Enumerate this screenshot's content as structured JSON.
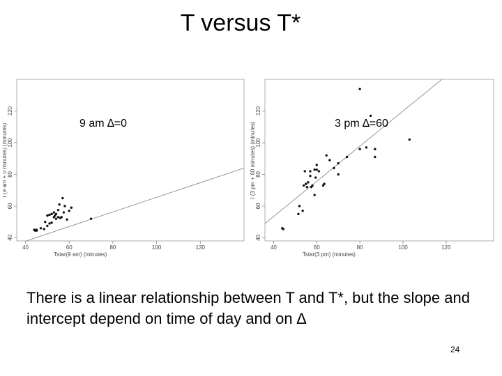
{
  "slide": {
    "title": "T versus T*",
    "body": "There is a linear relationship between T and T*, but the slope and intercept depend on time of day and on ∆",
    "page_number": "24"
  },
  "chart_data": [
    {
      "type": "scatter",
      "inset_label": "9 am ∆=0",
      "xlabel": "Tstar(9 am) (minutes)",
      "ylabel": "I (9 am + 0 minutes) (minutes)",
      "xlim": [
        36,
        140
      ],
      "ylim": [
        38,
        140
      ],
      "xticks": [
        40,
        60,
        80,
        100,
        120
      ],
      "yticks": [
        40,
        60,
        80,
        100,
        120
      ],
      "grid": false,
      "trend_line": [
        [
          36,
          36
        ],
        [
          140,
          84
        ]
      ],
      "points": [
        [
          44,
          45
        ],
        [
          44.5,
          44.5
        ],
        [
          45,
          45
        ],
        [
          44.2,
          44.8
        ],
        [
          45.2,
          44.6
        ],
        [
          47,
          46
        ],
        [
          48.5,
          45.5
        ],
        [
          49,
          50
        ],
        [
          50,
          47.5
        ],
        [
          50,
          54
        ],
        [
          51,
          49
        ],
        [
          51,
          54.5
        ],
        [
          52,
          49.5
        ],
        [
          52,
          55
        ],
        [
          53,
          53
        ],
        [
          53,
          56
        ],
        [
          53.5,
          54
        ],
        [
          54,
          52
        ],
        [
          54,
          55
        ],
        [
          55,
          53
        ],
        [
          55,
          57.5
        ],
        [
          55.5,
          61
        ],
        [
          56,
          52.5
        ],
        [
          56.5,
          53
        ],
        [
          57,
          65
        ],
        [
          57.5,
          56
        ],
        [
          58,
          60
        ],
        [
          59,
          51.5
        ],
        [
          60,
          57
        ],
        [
          61,
          59
        ],
        [
          70,
          52
        ]
      ]
    },
    {
      "type": "scatter",
      "inset_label": "3 pm ∆=60",
      "xlabel": "Tstar(3 pm) (minutes)",
      "ylabel": "I (3 pm + 60 minutes) (minutes)",
      "xlim": [
        36,
        142
      ],
      "ylim": [
        38,
        140
      ],
      "xticks": [
        40,
        60,
        80,
        100,
        120
      ],
      "yticks": [
        40,
        60,
        80,
        100,
        120
      ],
      "grid": false,
      "trend_line": [
        [
          36,
          49
        ],
        [
          118,
          140
        ]
      ],
      "points": [
        [
          44,
          46
        ],
        [
          44.5,
          45.5
        ],
        [
          51.5,
          55
        ],
        [
          52,
          60
        ],
        [
          53.5,
          57
        ],
        [
          54,
          73
        ],
        [
          54.5,
          82
        ],
        [
          55,
          74
        ],
        [
          55.5,
          72
        ],
        [
          56,
          75
        ],
        [
          57,
          82
        ],
        [
          57,
          79
        ],
        [
          57.5,
          72
        ],
        [
          58,
          73
        ],
        [
          59,
          83
        ],
        [
          59,
          67
        ],
        [
          59.5,
          78
        ],
        [
          60,
          86
        ],
        [
          60,
          83
        ],
        [
          61,
          82
        ],
        [
          63,
          73
        ],
        [
          63.5,
          74
        ],
        [
          64.5,
          92
        ],
        [
          66,
          89
        ],
        [
          68,
          84
        ],
        [
          70,
          87
        ],
        [
          70,
          80
        ],
        [
          74,
          91
        ],
        [
          80,
          96
        ],
        [
          80,
          134
        ],
        [
          83,
          97
        ],
        [
          85,
          117
        ],
        [
          87,
          96
        ],
        [
          87,
          91
        ],
        [
          103,
          102
        ]
      ]
    }
  ]
}
